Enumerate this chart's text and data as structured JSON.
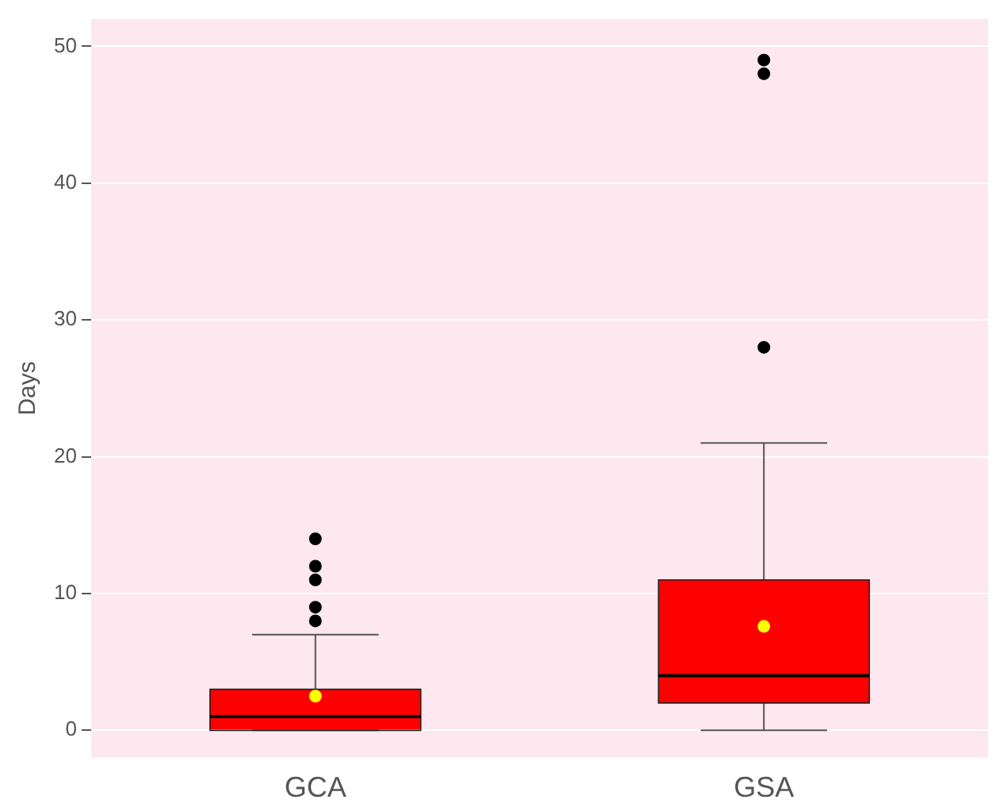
{
  "chart_data": {
    "type": "box",
    "ylabel": "Days",
    "categories": [
      "GCA",
      "GSA"
    ],
    "boxes": [
      {
        "low": 0,
        "q1": 0,
        "median": 1,
        "q3": 3,
        "high": 7,
        "mean": 2.5,
        "outliers": [
          8,
          9,
          11,
          12,
          14
        ]
      },
      {
        "low": 0,
        "q1": 2,
        "median": 4,
        "q3": 11,
        "high": 21,
        "mean": 7.6,
        "outliers": [
          28,
          48,
          49
        ]
      }
    ],
    "color": "#ff0000",
    "ylim": [
      -2,
      52
    ],
    "yticks": [
      0,
      10,
      20,
      30,
      40,
      50
    ],
    "grid": "y",
    "legend": false
  }
}
